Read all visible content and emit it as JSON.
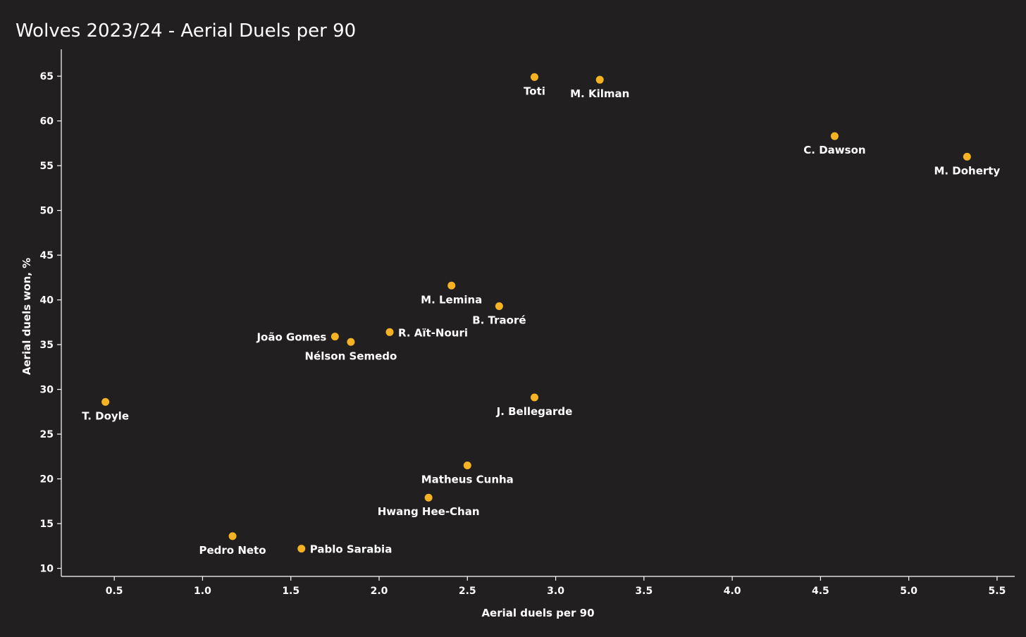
{
  "chart_data": {
    "type": "scatter",
    "title": "Wolves 2023/24 - Aerial Duels per 90",
    "xlabel": "Aerial duels per 90",
    "ylabel": "Aerial duels won, %",
    "xlim": [
      0.2,
      5.6
    ],
    "ylim": [
      9.1,
      68.0
    ],
    "x_ticks": [
      "0.5",
      "1.0",
      "1.5",
      "2.0",
      "2.5",
      "3.0",
      "3.5",
      "4.0",
      "4.5",
      "5.0",
      "5.5"
    ],
    "y_ticks": [
      "10",
      "15",
      "20",
      "25",
      "30",
      "35",
      "40",
      "45",
      "50",
      "55",
      "60",
      "65"
    ],
    "grid": false,
    "point_color": "#f5b324",
    "points": [
      {
        "name": "Toti",
        "x": 2.88,
        "y": 64.9,
        "label_pos": "below"
      },
      {
        "name": "M. Kilman",
        "x": 3.25,
        "y": 64.6,
        "label_pos": "below"
      },
      {
        "name": "C. Dawson",
        "x": 4.58,
        "y": 58.3,
        "label_pos": "below"
      },
      {
        "name": "M. Doherty",
        "x": 5.33,
        "y": 56.0,
        "label_pos": "below"
      },
      {
        "name": "M. Lemina",
        "x": 2.41,
        "y": 41.6,
        "label_pos": "below"
      },
      {
        "name": "B. Traoré",
        "x": 2.68,
        "y": 39.3,
        "label_pos": "below"
      },
      {
        "name": "R. Aït-Nouri",
        "x": 2.06,
        "y": 36.4,
        "label_pos": "right"
      },
      {
        "name": "João Gomes",
        "x": 1.75,
        "y": 35.9,
        "label_pos": "left"
      },
      {
        "name": "Nélson Semedo",
        "x": 1.84,
        "y": 35.3,
        "label_pos": "below"
      },
      {
        "name": "T. Doyle",
        "x": 0.45,
        "y": 28.6,
        "label_pos": "below"
      },
      {
        "name": "J. Bellegarde",
        "x": 2.88,
        "y": 29.1,
        "label_pos": "below"
      },
      {
        "name": "Matheus Cunha",
        "x": 2.5,
        "y": 21.5,
        "label_pos": "below"
      },
      {
        "name": "Hwang Hee-Chan",
        "x": 2.28,
        "y": 17.9,
        "label_pos": "below"
      },
      {
        "name": "Pedro Neto",
        "x": 1.17,
        "y": 13.6,
        "label_pos": "below"
      },
      {
        "name": "Pablo Sarabia",
        "x": 1.56,
        "y": 12.2,
        "label_pos": "right"
      }
    ]
  }
}
